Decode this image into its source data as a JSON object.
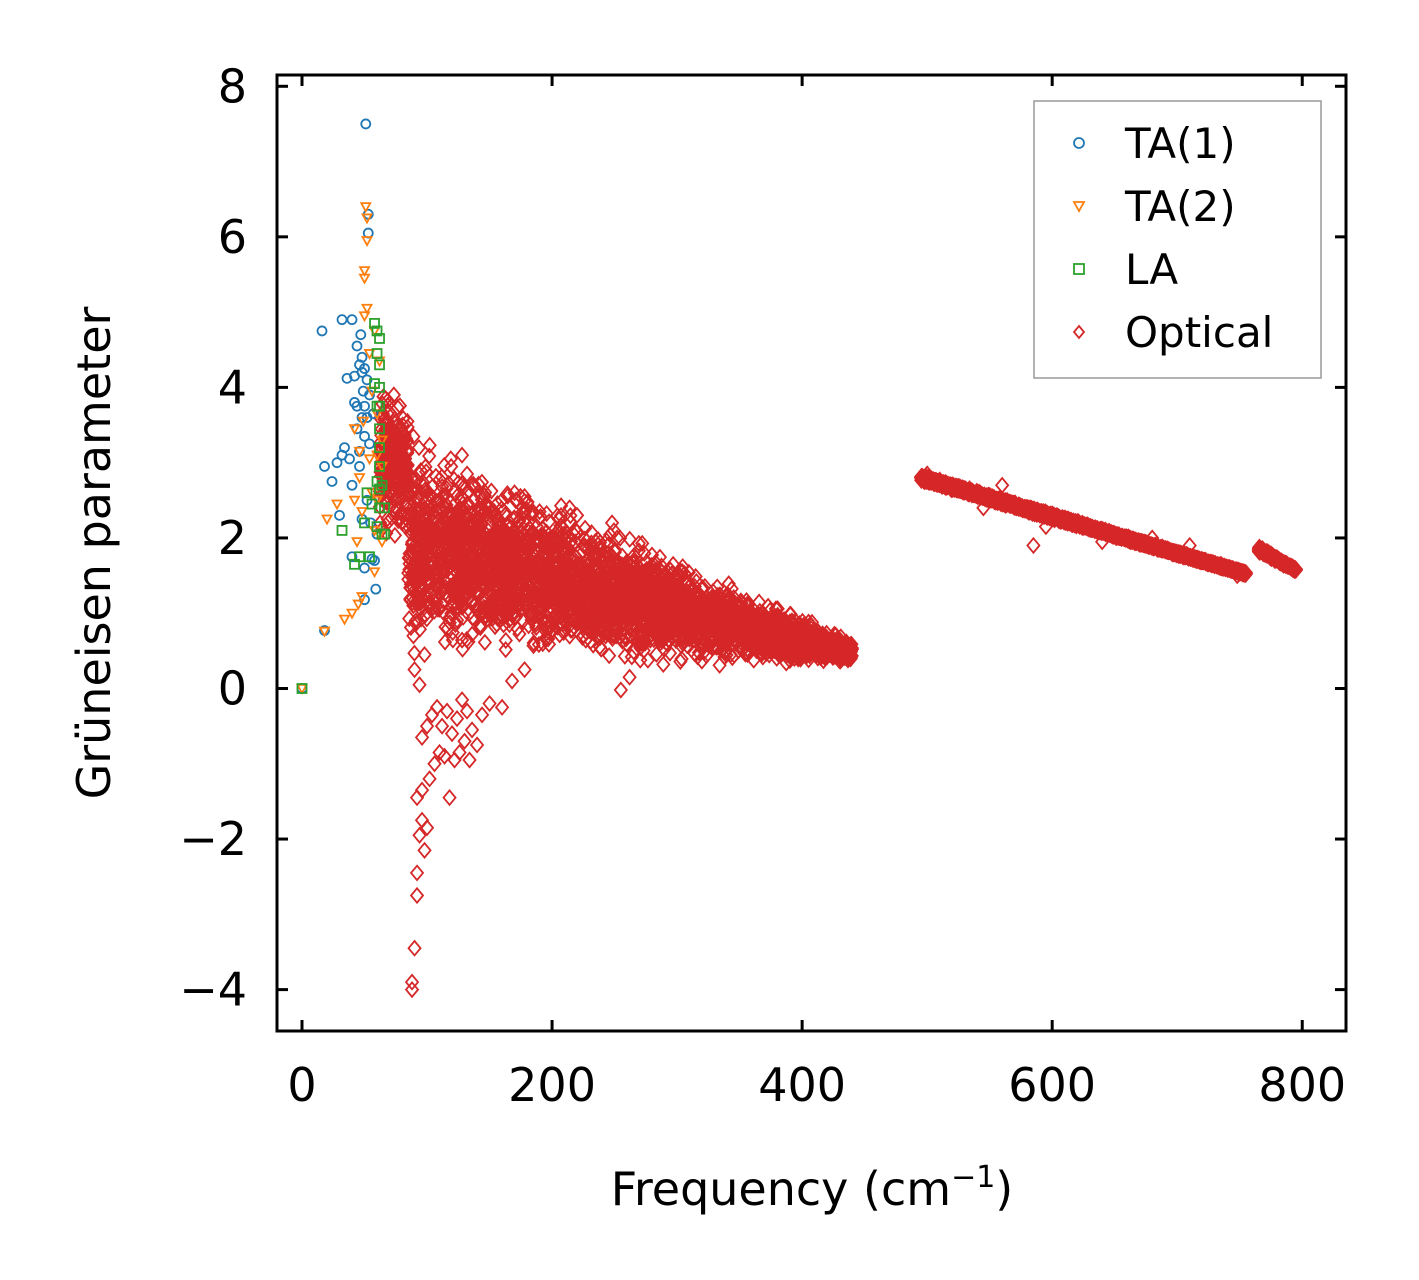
{
  "chart_data": {
    "type": "scatter",
    "xlabel": "Frequency (cm",
    "xlabel_sup": "−1",
    "xlabel_end": ")",
    "ylabel": "Grüneisen parameter",
    "xlim": [
      -20,
      835
    ],
    "ylim": [
      -4.55,
      8.15
    ],
    "x_ticks": [
      0,
      200,
      400,
      600,
      800
    ],
    "x_tick_labels": [
      "0",
      "200",
      "400",
      "600",
      "800"
    ],
    "y_ticks": [
      -4,
      -2,
      0,
      2,
      4,
      6,
      8
    ],
    "y_tick_labels": [
      "−4",
      "−2",
      "0",
      "2",
      "4",
      "6",
      "8"
    ],
    "grid": false,
    "legend_position": "top-right",
    "series": [
      {
        "name": "TA(1)",
        "marker": "circle",
        "color": "#1f77b4",
        "points": [
          [
            0,
            0
          ],
          [
            18,
            0.77
          ],
          [
            18,
            2.95
          ],
          [
            24,
            2.75
          ],
          [
            28,
            3.0
          ],
          [
            30,
            2.3
          ],
          [
            32,
            3.1
          ],
          [
            34,
            3.2
          ],
          [
            36,
            4.12
          ],
          [
            38,
            3.05
          ],
          [
            40,
            2.7
          ],
          [
            40,
            1.75
          ],
          [
            42,
            4.15
          ],
          [
            42,
            3.8
          ],
          [
            44,
            4.55
          ],
          [
            44,
            3.75
          ],
          [
            44,
            3.45
          ],
          [
            46,
            4.3
          ],
          [
            46,
            3.15
          ],
          [
            46,
            2.95
          ],
          [
            47,
            4.7
          ],
          [
            48,
            4.4
          ],
          [
            48,
            4.2
          ],
          [
            48,
            3.6
          ],
          [
            48,
            2.25
          ],
          [
            49,
            3.95
          ],
          [
            50,
            4.25
          ],
          [
            50,
            3.75
          ],
          [
            50,
            3.35
          ],
          [
            50,
            1.6
          ],
          [
            50,
            1.18
          ],
          [
            51,
            7.5
          ],
          [
            52,
            4.1
          ],
          [
            52,
            3.6
          ],
          [
            52,
            2.5
          ],
          [
            53,
            6.3
          ],
          [
            53,
            6.05
          ],
          [
            54,
            3.9
          ],
          [
            54,
            3.25
          ],
          [
            55,
            2.2
          ],
          [
            56,
            1.72
          ],
          [
            57,
            3.65
          ],
          [
            58,
            1.7
          ],
          [
            59,
            1.32
          ],
          [
            60,
            2.05
          ],
          [
            16,
            4.75
          ],
          [
            32,
            4.9
          ],
          [
            40,
            4.9
          ]
        ]
      },
      {
        "name": "TA(2)",
        "marker": "triangle_down",
        "color": "#ff7f0e",
        "points": [
          [
            0,
            0
          ],
          [
            18,
            0.76
          ],
          [
            20,
            2.25
          ],
          [
            28,
            2.45
          ],
          [
            34,
            0.92
          ],
          [
            40,
            1.0
          ],
          [
            42,
            2.5
          ],
          [
            42,
            3.45
          ],
          [
            44,
            1.95
          ],
          [
            45,
            1.12
          ],
          [
            46,
            3.15
          ],
          [
            46,
            2.8
          ],
          [
            48,
            1.22
          ],
          [
            48,
            2.35
          ],
          [
            49,
            3.55
          ],
          [
            50,
            5.55
          ],
          [
            50,
            5.45
          ],
          [
            50,
            4.95
          ],
          [
            51,
            6.4
          ],
          [
            52,
            6.25
          ],
          [
            52,
            5.95
          ],
          [
            52,
            5.05
          ],
          [
            54,
            4.45
          ],
          [
            54,
            3.05
          ],
          [
            56,
            2.6
          ],
          [
            56,
            3.95
          ],
          [
            58,
            4.75
          ],
          [
            58,
            2.1
          ],
          [
            58,
            1.55
          ],
          [
            60,
            3.65
          ],
          [
            60,
            3.1
          ],
          [
            60,
            2.5
          ],
          [
            62,
            4.35
          ],
          [
            62,
            2.05
          ],
          [
            64,
            3.3
          ],
          [
            64,
            2.95
          ],
          [
            64,
            1.95
          ]
        ]
      },
      {
        "name": "LA",
        "marker": "square",
        "color": "#2ca02c",
        "points": [
          [
            0,
            0
          ],
          [
            32,
            2.1
          ],
          [
            42,
            1.65
          ],
          [
            46,
            1.75
          ],
          [
            50,
            2.2
          ],
          [
            52,
            2.6
          ],
          [
            54,
            1.75
          ],
          [
            56,
            2.45
          ],
          [
            58,
            4.85
          ],
          [
            58,
            4.05
          ],
          [
            60,
            4.75
          ],
          [
            60,
            4.45
          ],
          [
            60,
            3.75
          ],
          [
            60,
            2.75
          ],
          [
            60,
            2.15
          ],
          [
            62,
            4.65
          ],
          [
            62,
            4.3
          ],
          [
            62,
            4.0
          ],
          [
            62,
            3.75
          ],
          [
            62,
            3.45
          ],
          [
            62,
            3.2
          ],
          [
            62,
            2.95
          ],
          [
            62,
            2.65
          ],
          [
            62,
            2.4
          ],
          [
            64,
            2.05
          ],
          [
            64,
            2.7
          ],
          [
            66,
            2.4
          ],
          [
            66,
            2.05
          ]
        ]
      },
      {
        "name": "Optical",
        "marker": "diamond",
        "color": "#d62728",
        "points": [],
        "bands": [
          {
            "x": [
              62,
              85
            ],
            "upper": [
              4.35,
              3.9
            ],
            "lower": [
              1.8,
              1.9
            ]
          },
          {
            "x": [
              85,
              440
            ],
            "upper": [
              3.6,
              0.65
            ],
            "lower": [
              0.2,
              0.3
            ]
          },
          {
            "x": [
              495,
              755
            ],
            "upper": [
              2.85,
              1.55
            ],
            "lower": [
              2.75,
              1.5
            ]
          },
          {
            "x": [
              765,
              795
            ],
            "upper": [
              1.9,
              1.6
            ],
            "lower": [
              1.8,
              1.55
            ]
          }
        ],
        "outliers": [
          [
            88,
            -4.0
          ],
          [
            88,
            -3.9
          ],
          [
            90,
            -3.45
          ],
          [
            92,
            -2.75
          ],
          [
            92,
            -2.45
          ],
          [
            94,
            -1.95
          ],
          [
            96,
            -1.75
          ],
          [
            98,
            -2.15
          ],
          [
            100,
            -1.85
          ],
          [
            92,
            -1.45
          ],
          [
            96,
            -1.35
          ],
          [
            102,
            -1.2
          ],
          [
            106,
            -1.0
          ],
          [
            110,
            -0.85
          ],
          [
            114,
            -0.9
          ],
          [
            118,
            -1.45
          ],
          [
            122,
            -0.95
          ],
          [
            126,
            -0.85
          ],
          [
            130,
            -0.7
          ],
          [
            134,
            -0.95
          ],
          [
            140,
            -0.75
          ],
          [
            96,
            -0.65
          ],
          [
            100,
            -0.5
          ],
          [
            104,
            -0.35
          ],
          [
            108,
            -0.25
          ],
          [
            112,
            -0.5
          ],
          [
            116,
            -0.3
          ],
          [
            120,
            -0.6
          ],
          [
            124,
            -0.4
          ],
          [
            128,
            -0.15
          ],
          [
            132,
            -0.3
          ],
          [
            136,
            -0.55
          ],
          [
            144,
            -0.35
          ],
          [
            150,
            -0.2
          ],
          [
            160,
            -0.25
          ],
          [
            90,
            0.25
          ],
          [
            94,
            0.05
          ],
          [
            98,
            0.45
          ],
          [
            168,
            0.1
          ],
          [
            178,
            0.25
          ],
          [
            255,
            -0.02
          ],
          [
            262,
            0.15
          ],
          [
            128,
            3.1
          ],
          [
            132,
            2.85
          ],
          [
            136,
            2.7
          ],
          [
            148,
            2.45
          ],
          [
            160,
            2.5
          ],
          [
            170,
            2.6
          ],
          [
            178,
            2.55
          ],
          [
            190,
            2.35
          ],
          [
            214,
            2.4
          ],
          [
            220,
            2.3
          ],
          [
            248,
            2.2
          ],
          [
            252,
            2.0
          ],
          [
            266,
            1.45
          ],
          [
            278,
            1.2
          ],
          [
            300,
            1.05
          ],
          [
            330,
            1.15
          ],
          [
            362,
            0.75
          ],
          [
            380,
            0.65
          ],
          [
            500,
            2.85
          ],
          [
            520,
            2.7
          ],
          [
            545,
            2.4
          ],
          [
            560,
            2.7
          ],
          [
            585,
            1.9
          ],
          [
            595,
            2.15
          ],
          [
            640,
            1.95
          ],
          [
            680,
            2.0
          ],
          [
            710,
            1.9
          ],
          [
            735,
            1.65
          ],
          [
            748,
            1.5
          ]
        ]
      }
    ]
  }
}
